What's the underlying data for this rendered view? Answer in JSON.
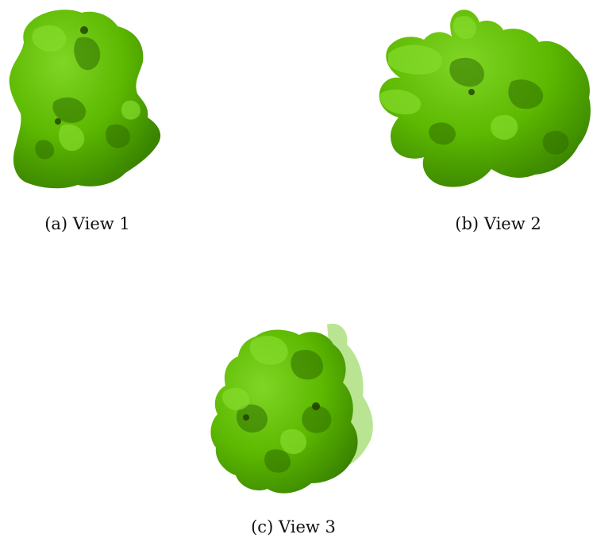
{
  "figure": {
    "panels": [
      {
        "caption": "(a) View 1",
        "icon": "green-blob-render",
        "color": "#5cb800"
      },
      {
        "caption": "(b) View 2",
        "icon": "green-blob-render",
        "color": "#5cb800"
      },
      {
        "caption": "(c) View 3",
        "icon": "green-blob-render",
        "color": "#5cb800"
      }
    ],
    "colors": {
      "base": "#5cb800",
      "highlight": "#7ad41e",
      "shadow": "#2f6e00",
      "hole": "#1e3e00"
    }
  }
}
